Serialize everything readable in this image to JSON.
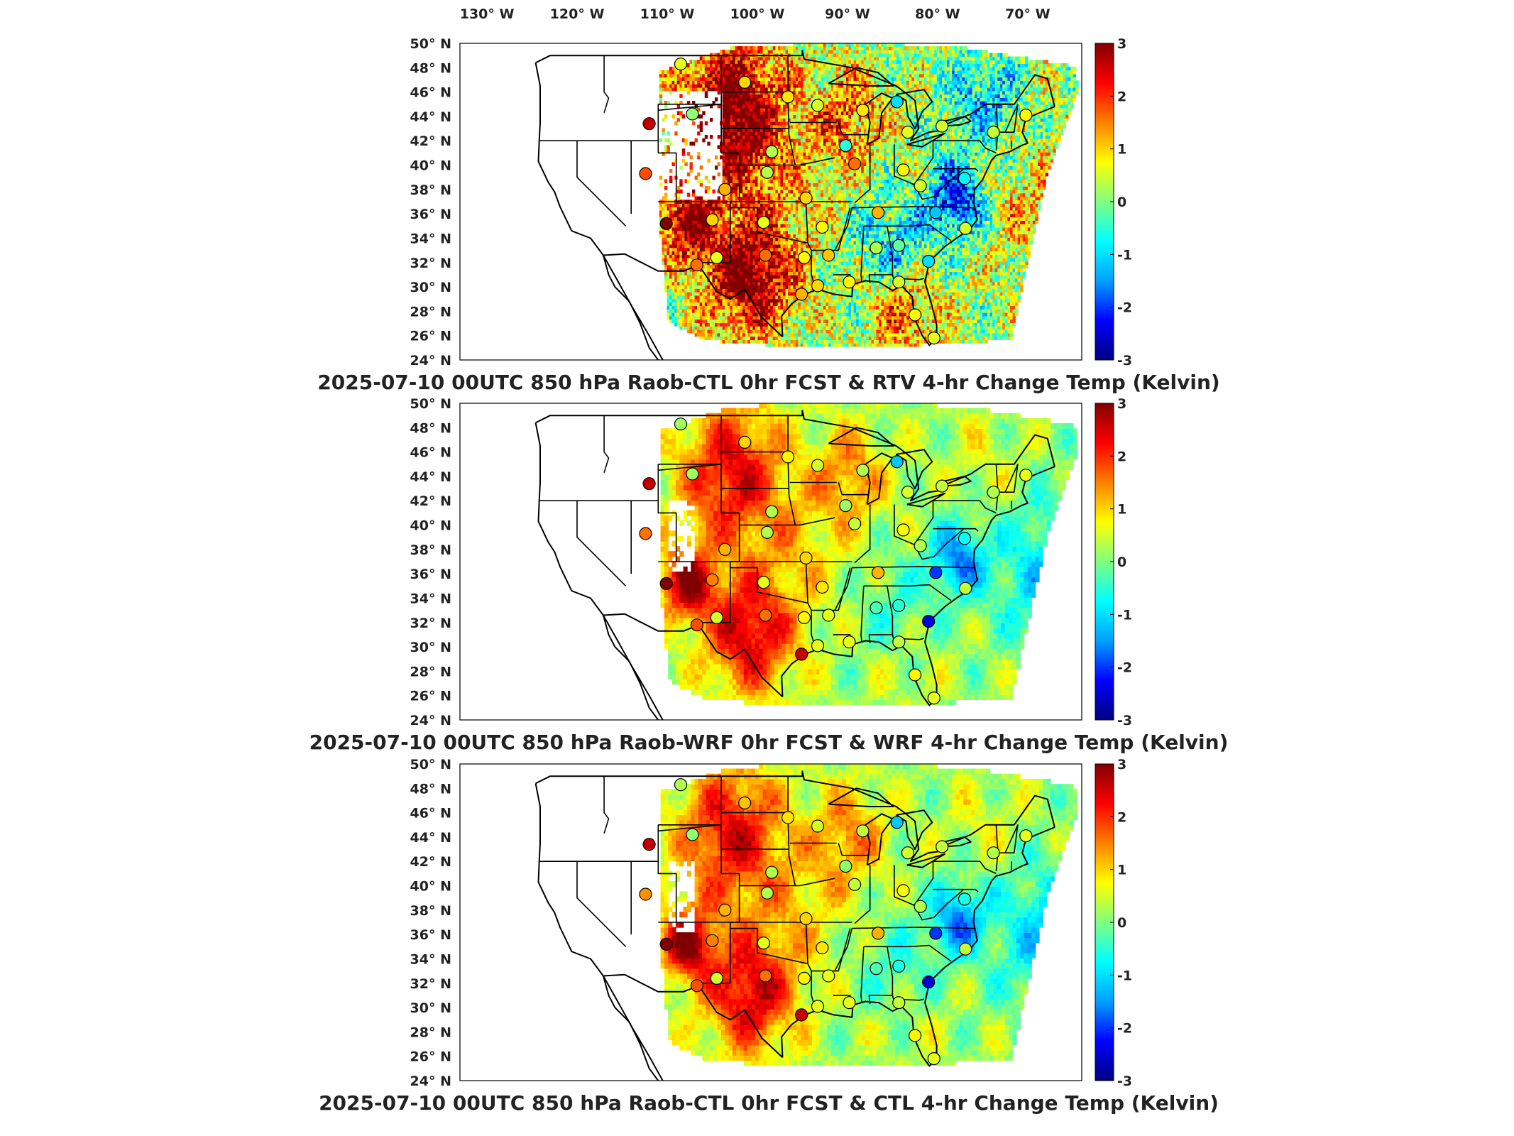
{
  "figure": {
    "lon_tick_labels": [
      "130° W",
      "120° W",
      "110° W",
      "100° W",
      "90° W",
      "80° W",
      "70° W"
    ],
    "lat_tick_labels": [
      "50° N",
      "48° N",
      "46° N",
      "44° N",
      "42° N",
      "40° N",
      "38° N",
      "36° N",
      "34° N",
      "32° N",
      "30° N",
      "28° N",
      "26° N",
      "24° N"
    ],
    "colorbar_ticks": [
      "3",
      "2",
      "1",
      "0",
      "-1",
      "-2",
      "-3"
    ],
    "colormap": [
      "#000080",
      "#0000ff",
      "#00a0ff",
      "#00ffff",
      "#80ff80",
      "#ffff00",
      "#ff8000",
      "#ff0000",
      "#800000"
    ]
  },
  "panels": [
    {
      "title": "2025-07-10 00UTC 850 hPa Raob-CTL 0hr FCST & RTV 4-hr Change Temp (Kelvin)"
    },
    {
      "title": "2025-07-10 00UTC 850 hPa Raob-WRF 0hr FCST & WRF 4-hr Change Temp (Kelvin)"
    },
    {
      "title": "2025-07-10 00UTC 850 hPa Raob-CTL 0hr FCST & CTL 4-hr Change Temp (Kelvin)"
    }
  ],
  "chart_data": {
    "type": "map",
    "projection": "lon/lat",
    "lon_range": [
      -133,
      -64
    ],
    "lat_range": [
      24,
      50
    ],
    "colorbar_range": [
      -3,
      3
    ],
    "units": "Kelvin",
    "raob_stations": [
      {
        "lon": -108.5,
        "lat": 48.3,
        "v": [
          0.6,
          0.2,
          0.3
        ]
      },
      {
        "lon": -101.4,
        "lat": 46.8,
        "v": [
          1.0,
          1.0,
          1.1
        ]
      },
      {
        "lon": -96.6,
        "lat": 45.6,
        "v": [
          0.9,
          0.8,
          0.9
        ]
      },
      {
        "lon": -93.3,
        "lat": 44.9,
        "v": [
          0.5,
          0.5,
          0.5
        ]
      },
      {
        "lon": -88.3,
        "lat": 44.5,
        "v": [
          0.9,
          0.3,
          0.4
        ]
      },
      {
        "lon": -84.5,
        "lat": 45.2,
        "v": [
          -1.0,
          -1.2,
          -1.2
        ]
      },
      {
        "lon": -107.2,
        "lat": 44.2,
        "v": [
          0.1,
          0.2,
          0.1
        ]
      },
      {
        "lon": -112.0,
        "lat": 43.4,
        "v": [
          2.6,
          2.6,
          2.6
        ]
      },
      {
        "lon": -98.4,
        "lat": 41.1,
        "v": [
          0.3,
          0.3,
          0.3
        ]
      },
      {
        "lon": -90.2,
        "lat": 41.6,
        "v": [
          -0.5,
          0.2,
          0.1
        ]
      },
      {
        "lon": -89.2,
        "lat": 40.1,
        "v": [
          1.6,
          0.4,
          0.4
        ]
      },
      {
        "lon": -83.3,
        "lat": 42.7,
        "v": [
          0.6,
          0.5,
          0.5
        ]
      },
      {
        "lon": -79.5,
        "lat": 43.2,
        "v": [
          0.5,
          0.4,
          0.4
        ]
      },
      {
        "lon": -73.8,
        "lat": 42.7,
        "v": [
          0.4,
          0.3,
          0.3
        ]
      },
      {
        "lon": -70.2,
        "lat": 44.1,
        "v": [
          0.8,
          0.6,
          0.6
        ]
      },
      {
        "lon": -112.4,
        "lat": 39.3,
        "v": [
          1.8,
          1.6,
          1.4
        ]
      },
      {
        "lon": -103.6,
        "lat": 38.0,
        "v": [
          1.2,
          1.2,
          1.2
        ]
      },
      {
        "lon": -98.9,
        "lat": 39.4,
        "v": [
          0.3,
          0.3,
          0.3
        ]
      },
      {
        "lon": -94.6,
        "lat": 37.3,
        "v": [
          1.0,
          1.0,
          1.0
        ]
      },
      {
        "lon": -83.8,
        "lat": 39.6,
        "v": [
          0.8,
          0.7,
          0.7
        ]
      },
      {
        "lon": -81.9,
        "lat": 38.3,
        "v": [
          0.5,
          0.3,
          0.3
        ]
      },
      {
        "lon": -77.0,
        "lat": 38.9,
        "v": [
          -0.8,
          -0.7,
          -0.6
        ]
      },
      {
        "lon": -110.1,
        "lat": 35.2,
        "v": [
          3.0,
          3.0,
          3.0
        ]
      },
      {
        "lon": -105.0,
        "lat": 35.5,
        "v": [
          1.0,
          1.5,
          1.5
        ]
      },
      {
        "lon": -99.3,
        "lat": 35.3,
        "v": [
          0.6,
          0.6,
          0.6
        ]
      },
      {
        "lon": -92.8,
        "lat": 34.9,
        "v": [
          0.8,
          0.9,
          0.9
        ]
      },
      {
        "lon": -86.6,
        "lat": 36.1,
        "v": [
          1.2,
          1.2,
          1.2
        ]
      },
      {
        "lon": -80.2,
        "lat": 36.1,
        "v": [
          -1.2,
          -2.0,
          -2.0
        ]
      },
      {
        "lon": -76.9,
        "lat": 34.8,
        "v": [
          0.5,
          0.4,
          0.4
        ]
      },
      {
        "lon": -104.5,
        "lat": 32.4,
        "v": [
          0.6,
          0.5,
          0.5
        ]
      },
      {
        "lon": -99.1,
        "lat": 32.6,
        "v": [
          1.6,
          1.6,
          1.6
        ]
      },
      {
        "lon": -94.8,
        "lat": 32.4,
        "v": [
          0.8,
          0.8,
          0.8
        ]
      },
      {
        "lon": -92.1,
        "lat": 32.6,
        "v": [
          1.1,
          0.6,
          0.6
        ]
      },
      {
        "lon": -86.8,
        "lat": 33.2,
        "v": [
          0.3,
          -0.3,
          -0.3
        ]
      },
      {
        "lon": -84.3,
        "lat": 33.4,
        "v": [
          -0.2,
          -0.5,
          -0.6
        ]
      },
      {
        "lon": -81.0,
        "lat": 32.1,
        "v": [
          -1.0,
          -2.5,
          -2.5
        ]
      },
      {
        "lon": -106.7,
        "lat": 31.8,
        "v": [
          1.6,
          1.8,
          1.8
        ]
      },
      {
        "lon": -93.3,
        "lat": 30.1,
        "v": [
          1.0,
          0.6,
          0.6
        ]
      },
      {
        "lon": -95.1,
        "lat": 29.4,
        "v": [
          1.2,
          2.6,
          2.6
        ]
      },
      {
        "lon": -89.8,
        "lat": 30.4,
        "v": [
          0.8,
          0.6,
          0.6
        ]
      },
      {
        "lon": -84.3,
        "lat": 30.4,
        "v": [
          0.5,
          0.4,
          0.4
        ]
      },
      {
        "lon": -82.5,
        "lat": 27.7,
        "v": [
          0.8,
          0.8,
          0.8
        ]
      },
      {
        "lon": -80.4,
        "lat": 25.8,
        "v": [
          0.6,
          0.6,
          0.6
        ]
      }
    ]
  }
}
